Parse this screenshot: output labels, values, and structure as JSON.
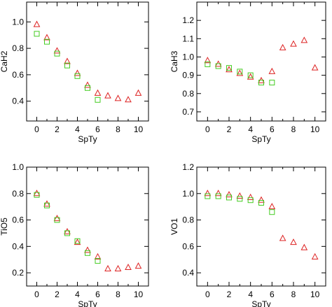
{
  "colors": {
    "triangle": "#dd2222",
    "square": "#44cc22",
    "axis": "#000000"
  },
  "chart_data": [
    {
      "type": "scatter",
      "xlabel": "SpTy",
      "ylabel": "CaH2",
      "xlim": [
        -1,
        11
      ],
      "ylim": [
        0.25,
        1.15
      ],
      "xticks": [
        0,
        2,
        4,
        6,
        8,
        10
      ],
      "yticks": [
        0.4,
        0.6,
        0.8,
        1.0
      ],
      "ytick_labels": [
        "0.4",
        "0.6",
        "0.8",
        "1.0"
      ],
      "series": [
        {
          "marker": "triangle",
          "x": [
            0,
            1,
            2,
            3,
            4,
            5,
            6,
            7,
            8,
            9,
            10
          ],
          "y": [
            0.98,
            0.88,
            0.78,
            0.7,
            0.61,
            0.52,
            0.46,
            0.44,
            0.42,
            0.41,
            0.46
          ]
        },
        {
          "marker": "square",
          "x": [
            0,
            1,
            2,
            3,
            4,
            5,
            6
          ],
          "y": [
            0.91,
            0.85,
            0.76,
            0.67,
            0.59,
            0.5,
            0.41
          ]
        }
      ]
    },
    {
      "type": "scatter",
      "xlabel": "SpTy",
      "ylabel": "CaH3",
      "xlim": [
        -1,
        11
      ],
      "ylim": [
        0.65,
        1.3
      ],
      "xticks": [
        0,
        2,
        4,
        6,
        8,
        10
      ],
      "yticks": [
        0.7,
        0.8,
        0.9,
        1.0,
        1.1,
        1.2
      ],
      "ytick_labels": [
        "0.7",
        "0.8",
        "0.9",
        "1.0",
        "1.1",
        "1.2"
      ],
      "series": [
        {
          "marker": "triangle",
          "x": [
            0,
            1,
            2,
            3,
            4,
            5,
            6,
            7,
            8,
            9,
            10
          ],
          "y": [
            0.98,
            0.96,
            0.93,
            0.91,
            0.89,
            0.87,
            0.92,
            1.05,
            1.07,
            1.09,
            0.94
          ]
        },
        {
          "marker": "square",
          "x": [
            0,
            1,
            2,
            3,
            4,
            5,
            6
          ],
          "y": [
            0.96,
            0.95,
            0.94,
            0.92,
            0.9,
            0.86,
            0.86
          ]
        }
      ]
    },
    {
      "type": "scatter",
      "xlabel": "SpTy",
      "ylabel": "TiO5",
      "xlim": [
        -1,
        11
      ],
      "ylim": [
        0.1,
        1.0
      ],
      "xticks": [
        0,
        2,
        4,
        6,
        8,
        10
      ],
      "yticks": [
        0.2,
        0.4,
        0.6,
        0.8,
        1.0
      ],
      "ytick_labels": [
        "0.2",
        "0.4",
        "0.6",
        "0.8",
        "1.0"
      ],
      "series": [
        {
          "marker": "triangle",
          "x": [
            0,
            1,
            2,
            3,
            4,
            5,
            6,
            7,
            8,
            9,
            10
          ],
          "y": [
            0.8,
            0.72,
            0.61,
            0.51,
            0.43,
            0.37,
            0.32,
            0.23,
            0.23,
            0.24,
            0.25
          ]
        },
        {
          "marker": "square",
          "x": [
            0,
            1,
            2,
            3,
            4,
            5,
            6
          ],
          "y": [
            0.79,
            0.71,
            0.6,
            0.5,
            0.44,
            0.35,
            0.29
          ]
        }
      ]
    },
    {
      "type": "scatter",
      "xlabel": "SpTy",
      "ylabel": "VO1",
      "xlim": [
        -1,
        11
      ],
      "ylim": [
        0.3,
        1.2
      ],
      "xticks": [
        0,
        2,
        4,
        6,
        8,
        10
      ],
      "yticks": [
        0.4,
        0.6,
        0.8,
        1.0,
        1.2
      ],
      "ytick_labels": [
        "0.4",
        "0.6",
        "0.8",
        "1.0",
        "1.2"
      ],
      "series": [
        {
          "marker": "triangle",
          "x": [
            0,
            1,
            2,
            3,
            4,
            5,
            6,
            7,
            8,
            9,
            10
          ],
          "y": [
            1.0,
            1.0,
            0.99,
            0.98,
            0.97,
            0.95,
            0.9,
            0.66,
            0.63,
            0.59,
            0.52
          ]
        },
        {
          "marker": "square",
          "x": [
            0,
            1,
            2,
            3,
            4,
            5,
            6
          ],
          "y": [
            0.98,
            0.98,
            0.97,
            0.96,
            0.95,
            0.93,
            0.86
          ]
        }
      ]
    }
  ]
}
